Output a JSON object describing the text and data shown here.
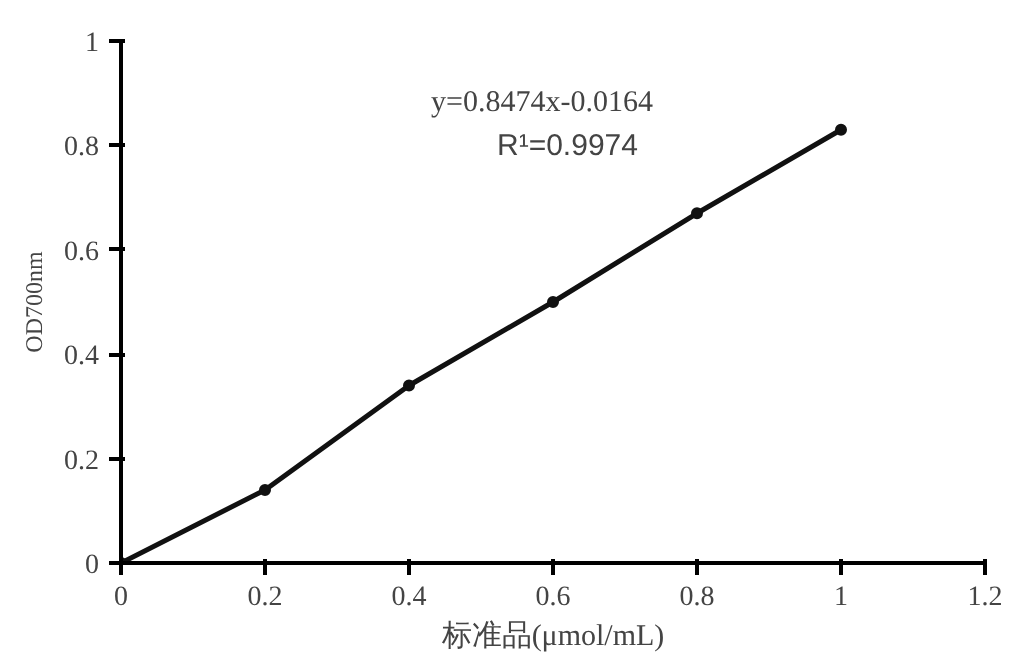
{
  "chart_data": {
    "type": "line",
    "xlabel": "标准品(μmol/mL)",
    "ylabel": "OD700nm",
    "x": [
      0,
      0.2,
      0.4,
      0.6,
      0.8,
      1.0
    ],
    "series": [
      {
        "color": "#111111",
        "values": [
          0,
          0.14,
          0.34,
          0.5,
          0.67,
          0.83
        ]
      }
    ],
    "marker": "circle",
    "line_style": "solid",
    "xlim": [
      0,
      1.2
    ],
    "xticks": [
      0,
      0.2,
      0.4,
      0.6,
      0.8,
      1,
      1.2
    ],
    "ylim": [
      0,
      1
    ],
    "yticks": [
      0,
      0.2,
      0.4,
      0.6,
      0.8,
      1
    ],
    "annotations": [
      "y=0.8474x-0.0164",
      "R¹=0.9974"
    ],
    "grid": false
  }
}
